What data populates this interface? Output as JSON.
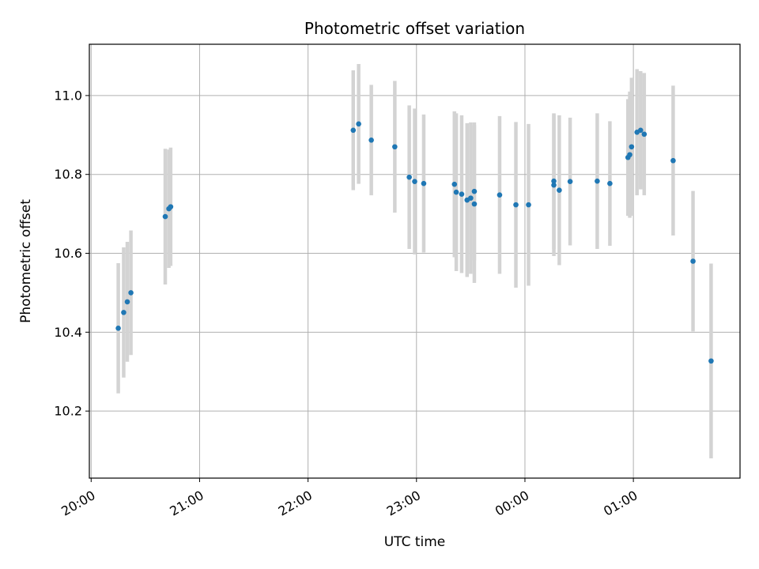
{
  "chart_data": {
    "type": "scatter",
    "title": "Photometric offset variation",
    "xlabel": "UTC time",
    "ylabel": "Photometric offset",
    "x_axis": "time",
    "xlim": [
      "19:59",
      "01:59"
    ],
    "ylim": [
      10.03,
      11.13
    ],
    "x_ticks": [
      "20:00",
      "21:00",
      "22:00",
      "23:00",
      "00:00",
      "01:00"
    ],
    "y_ticks": [
      10.2,
      10.4,
      10.6,
      10.8,
      11.0
    ],
    "grid": true,
    "colors": {
      "point": "#1f77b4",
      "errorbar": "#d3d3d3",
      "grid": "#b0b0b0"
    },
    "points": [
      {
        "t": "20:15",
        "y": 10.41,
        "err": 0.165
      },
      {
        "t": "20:18",
        "y": 10.45,
        "err": 0.165
      },
      {
        "t": "20:20",
        "y": 10.477,
        "err": 0.152
      },
      {
        "t": "20:22",
        "y": 10.5,
        "err": 0.158
      },
      {
        "t": "20:41",
        "y": 10.693,
        "err": 0.172
      },
      {
        "t": "20:43",
        "y": 10.713,
        "err": 0.15
      },
      {
        "t": "20:44",
        "y": 10.718,
        "err": 0.15
      },
      {
        "t": "22:25",
        "y": 10.912,
        "err": 0.152
      },
      {
        "t": "22:28",
        "y": 10.928,
        "err": 0.152
      },
      {
        "t": "22:35",
        "y": 10.887,
        "err": 0.14
      },
      {
        "t": "22:48",
        "y": 10.87,
        "err": 0.167
      },
      {
        "t": "22:56",
        "y": 10.793,
        "err": 0.182
      },
      {
        "t": "22:59",
        "y": 10.782,
        "err": 0.185
      },
      {
        "t": "23:04",
        "y": 10.777,
        "err": 0.175
      },
      {
        "t": "23:21",
        "y": 10.775,
        "err": 0.185
      },
      {
        "t": "23:22",
        "y": 10.755,
        "err": 0.2
      },
      {
        "t": "23:25",
        "y": 10.75,
        "err": 0.2
      },
      {
        "t": "23:28",
        "y": 10.735,
        "err": 0.195
      },
      {
        "t": "23:30",
        "y": 10.74,
        "err": 0.192
      },
      {
        "t": "23:32",
        "y": 10.725,
        "err": 0.2
      },
      {
        "t": "23:32",
        "y": 10.757,
        "err": 0.175
      },
      {
        "t": "23:46",
        "y": 10.748,
        "err": 0.2
      },
      {
        "t": "23:55",
        "y": 10.723,
        "err": 0.21
      },
      {
        "t": "00:02",
        "y": 10.723,
        "err": 0.205
      },
      {
        "t": "00:16",
        "y": 10.783,
        "err": 0.172
      },
      {
        "t": "00:16",
        "y": 10.773,
        "err": 0.18
      },
      {
        "t": "00:19",
        "y": 10.76,
        "err": 0.19
      },
      {
        "t": "00:25",
        "y": 10.782,
        "err": 0.162
      },
      {
        "t": "00:40",
        "y": 10.783,
        "err": 0.172
      },
      {
        "t": "00:47",
        "y": 10.777,
        "err": 0.158
      },
      {
        "t": "00:57",
        "y": 10.843,
        "err": 0.148
      },
      {
        "t": "00:58",
        "y": 10.85,
        "err": 0.16
      },
      {
        "t": "00:59",
        "y": 10.87,
        "err": 0.175
      },
      {
        "t": "01:02",
        "y": 10.907,
        "err": 0.16
      },
      {
        "t": "01:04",
        "y": 10.912,
        "err": 0.15
      },
      {
        "t": "01:06",
        "y": 10.902,
        "err": 0.155
      },
      {
        "t": "01:22",
        "y": 10.835,
        "err": 0.19
      },
      {
        "t": "01:33",
        "y": 10.58,
        "err": 0.178
      },
      {
        "t": "01:43",
        "y": 10.327,
        "err": 0.247
      }
    ]
  }
}
